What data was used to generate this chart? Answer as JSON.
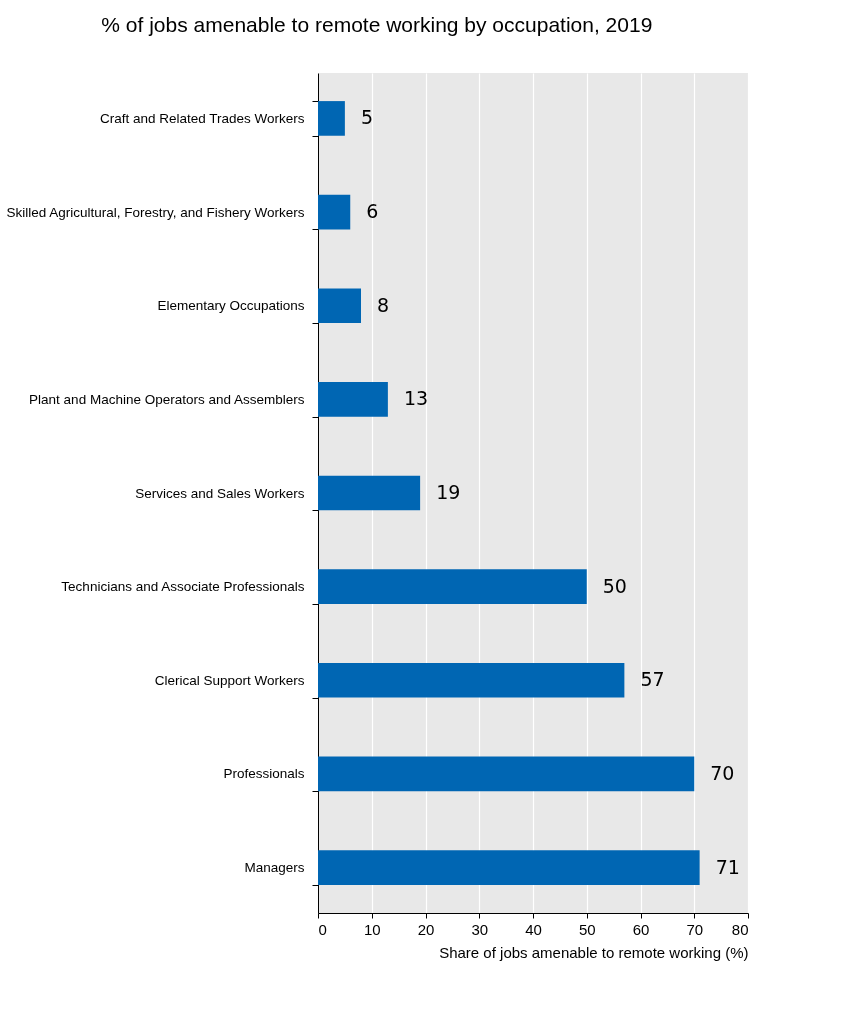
{
  "chart_data": {
    "type": "bar",
    "orientation": "horizontal",
    "title": "% of jobs amenable to remote working by occupation, 2019",
    "xlabel": "Share of jobs amenable to remote working (%)",
    "categories": [
      "Craft and Related Trades Workers",
      "Skilled Agricultural, Forestry, and Fishery Workers",
      "Elementary Occupations",
      "Plant and Machine Operators and Assemblers",
      "Services and Sales Workers",
      "Technicians and Associate Professionals",
      "Clerical Support Workers",
      "Professionals",
      "Managers"
    ],
    "values": [
      5,
      6,
      8,
      13,
      19,
      50,
      57,
      70,
      71
    ],
    "color": "#0066b3",
    "xlim": [
      0,
      80
    ],
    "xticks": [
      0,
      10,
      20,
      30,
      40,
      50,
      60,
      70,
      80
    ],
    "grid": "x",
    "data_labels": true
  }
}
